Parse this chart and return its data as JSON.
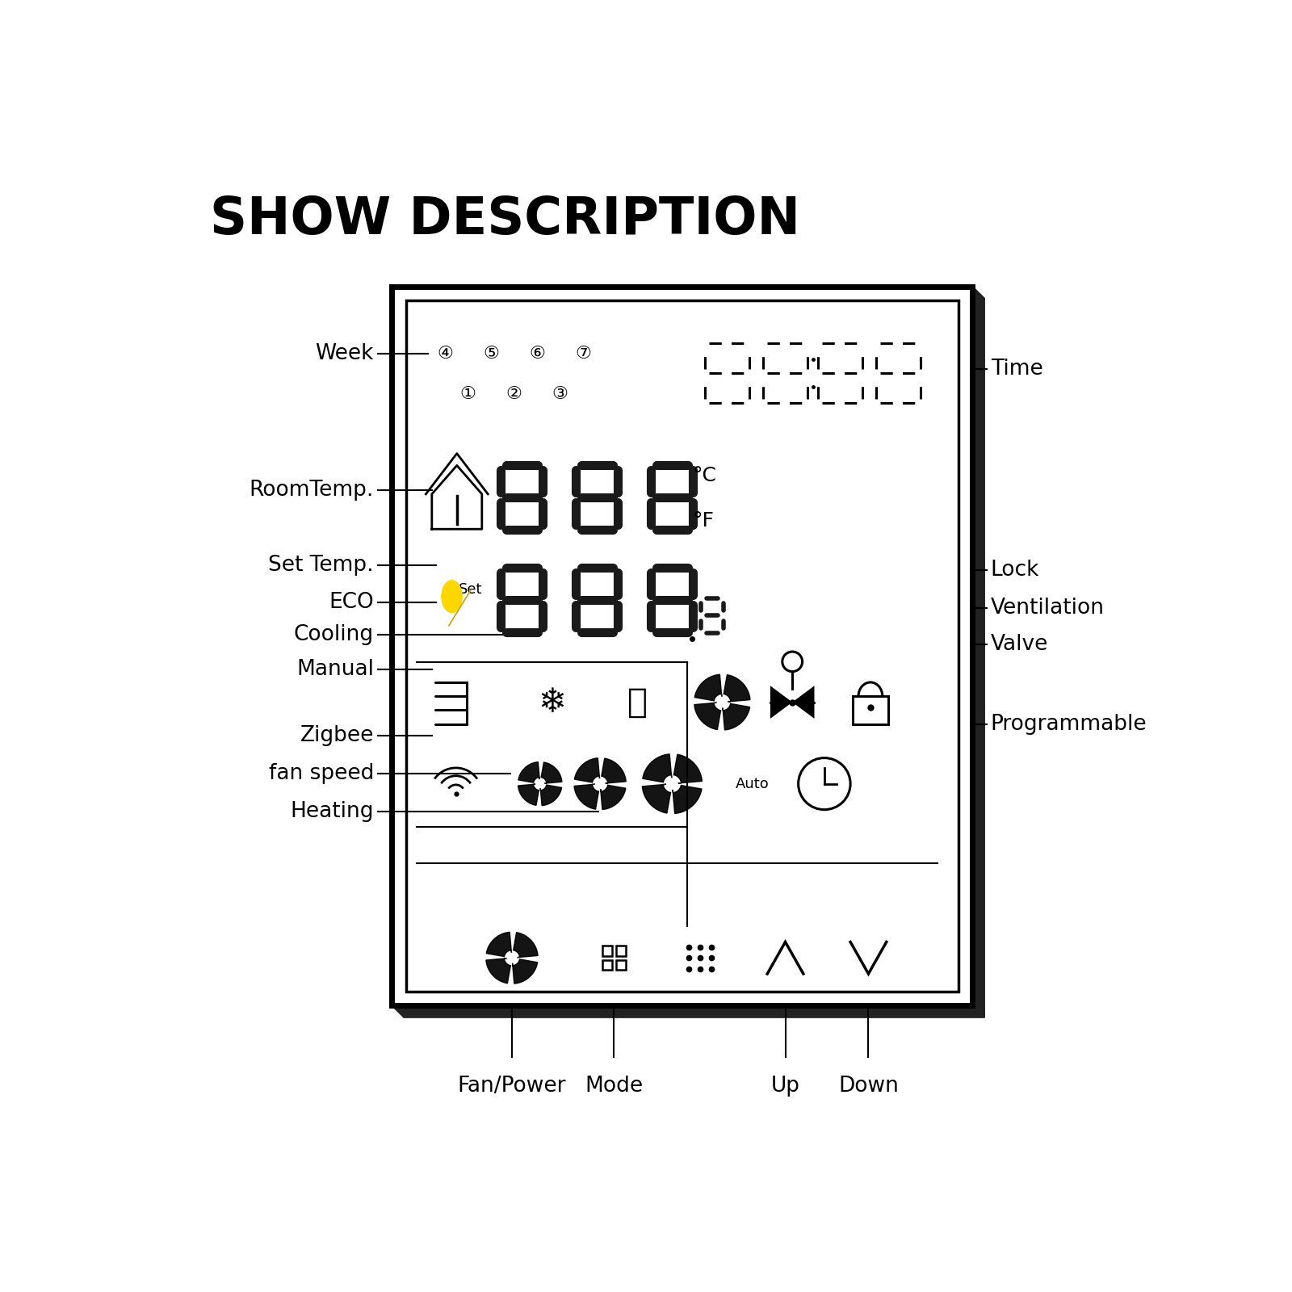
{
  "title": "SHOW DESCRIPTION",
  "bg": "#ffffff",
  "BL": 0.23,
  "BB": 0.145,
  "BR": 0.81,
  "BT": 0.868,
  "afs": 19,
  "tfs": 46,
  "seg_color": "#1a1a1a",
  "week_nums_row1": [
    "④",
    "⑤",
    "⑥",
    "⑦"
  ],
  "week_nums_row2": [
    "①",
    "②",
    "③"
  ],
  "left_labels": [
    "Week",
    "RoomTemp.",
    "Set Temp.",
    "ECO",
    "Cooling",
    "Manual",
    "Zigbee",
    "fan speed",
    "Heating"
  ],
  "right_labels": [
    "Time",
    "Lock",
    "Ventilation",
    "Valve",
    "Programmable"
  ],
  "bottom_labels": [
    "Fan/Power",
    "Mode",
    "Up",
    "Down"
  ]
}
